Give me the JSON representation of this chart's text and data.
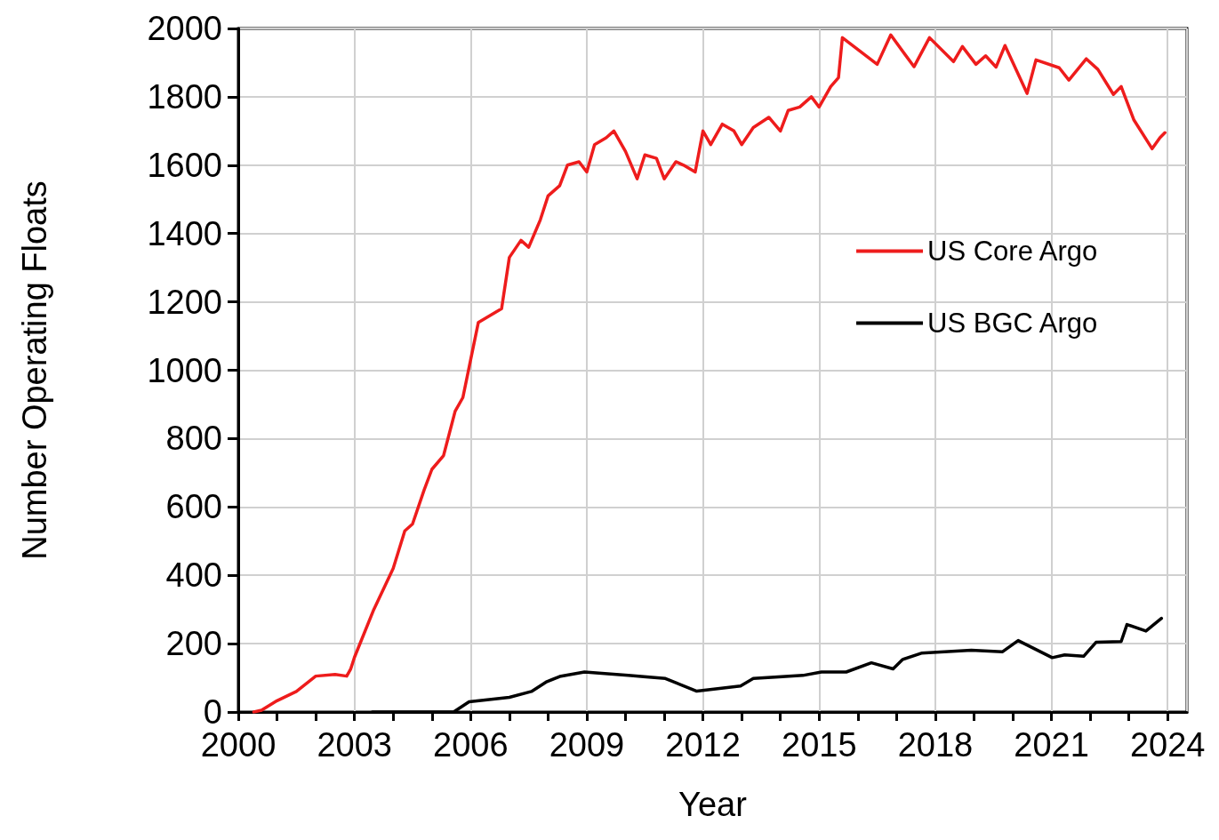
{
  "chart_data": {
    "type": "line",
    "xlabel": "Year",
    "ylabel": "Number Operating Floats",
    "xlim": [
      2000,
      2024.5
    ],
    "ylim": [
      0,
      2000
    ],
    "xticks": [
      2000,
      {
        "value": 2001,
        "label": null
      },
      {
        "value": 2002,
        "label": null
      },
      2003,
      {
        "value": 2004,
        "label": null
      },
      {
        "value": 2005,
        "label": null
      },
      2006,
      {
        "value": 2007,
        "label": null
      },
      {
        "value": 2008,
        "label": null
      },
      2009,
      {
        "value": 2010,
        "label": null
      },
      {
        "value": 2011,
        "label": null
      },
      2012,
      {
        "value": 2013,
        "label": null
      },
      {
        "value": 2014,
        "label": null
      },
      2015,
      {
        "value": 2016,
        "label": null
      },
      {
        "value": 2017,
        "label": null
      },
      2018,
      {
        "value": 2019,
        "label": null
      },
      {
        "value": 2020,
        "label": null
      },
      2021,
      {
        "value": 2022,
        "label": null
      },
      {
        "value": 2023,
        "label": null
      },
      2024
    ],
    "yticks": [
      0,
      200,
      400,
      600,
      800,
      1000,
      1200,
      1400,
      1600,
      1800,
      2000
    ],
    "grid": true,
    "legend": "right",
    "marker": "none",
    "line_style": "solid",
    "series": [
      {
        "name": "US Core Argo",
        "color": "#ee1c1c",
        "x": [
          2000.4,
          2000.6,
          2001,
          2001.5,
          2002,
          2002.5,
          2002.8,
          2002.9,
          2003,
          2003.5,
          2004,
          2004.3,
          2004.5,
          2004.8,
          2005,
          2005.3,
          2005.6,
          2005.8,
          2006,
          2006.2,
          2006.5,
          2006.8,
          2007,
          2007.3,
          2007.5,
          2007.8,
          2008,
          2008.3,
          2008.5,
          2008.8,
          2009,
          2009.2,
          2009.5,
          2009.7,
          2010,
          2010.3,
          2010.5,
          2010.8,
          2011,
          2011.3,
          2011.5,
          2011.8,
          2012,
          2012.2,
          2012.5,
          2012.8,
          2013,
          2013.3,
          2013.7,
          2014,
          2014.2,
          2014.5,
          2014.8,
          2015,
          2015.3,
          2015.5,
          2015.6,
          2016.5,
          2016.85,
          2017.45,
          2017.85,
          2018.47,
          2018.7,
          2019.05,
          2019.3,
          2019.57,
          2019.8,
          2020.37,
          2020.6,
          2021.2,
          2021.45,
          2021.9,
          2022.2,
          2022.6,
          2022.8,
          2023.13,
          2023.6,
          2023.8,
          2023.93
        ],
        "values": [
          0,
          5,
          33,
          60,
          105,
          110,
          105,
          125,
          160,
          300,
          420,
          530,
          550,
          650,
          710,
          750,
          880,
          920,
          1030,
          1140,
          1160,
          1180,
          1330,
          1380,
          1360,
          1440,
          1510,
          1540,
          1600,
          1610,
          1580,
          1660,
          1680,
          1700,
          1640,
          1560,
          1630,
          1620,
          1560,
          1610,
          1600,
          1580,
          1700,
          1660,
          1720,
          1700,
          1660,
          1710,
          1740,
          1700,
          1760,
          1770,
          1800,
          1770,
          1830,
          1856,
          1973,
          1895,
          1981,
          1888,
          1973,
          1903,
          1947,
          1895,
          1920,
          1887,
          1950,
          1810,
          1908,
          1885,
          1849,
          1911,
          1880,
          1807,
          1830,
          1732,
          1648,
          1680,
          1695
        ]
      },
      {
        "name": "US BGC Argo",
        "color": "#000000",
        "x": [
          2003.46,
          2005.56,
          2005.96,
          2007.0,
          2007.57,
          2007.97,
          2008.3,
          2008.94,
          2010.07,
          2011.03,
          2011.84,
          2012.97,
          2013.3,
          2014.58,
          2015.06,
          2015.7,
          2016.35,
          2016.91,
          2017.16,
          2017.64,
          2018.93,
          2019.73,
          2020.14,
          2021.02,
          2021.34,
          2021.83,
          2022.15,
          2022.8,
          2022.95,
          2023.44,
          2023.84
        ],
        "values": [
          0,
          0,
          30,
          43,
          60,
          89,
          104,
          117,
          107,
          98,
          61,
          76,
          98,
          107,
          117,
          117,
          144,
          126,
          154,
          172,
          181,
          176,
          209,
          159,
          167,
          163,
          204,
          206,
          256,
          237,
          274
        ]
      }
    ]
  }
}
